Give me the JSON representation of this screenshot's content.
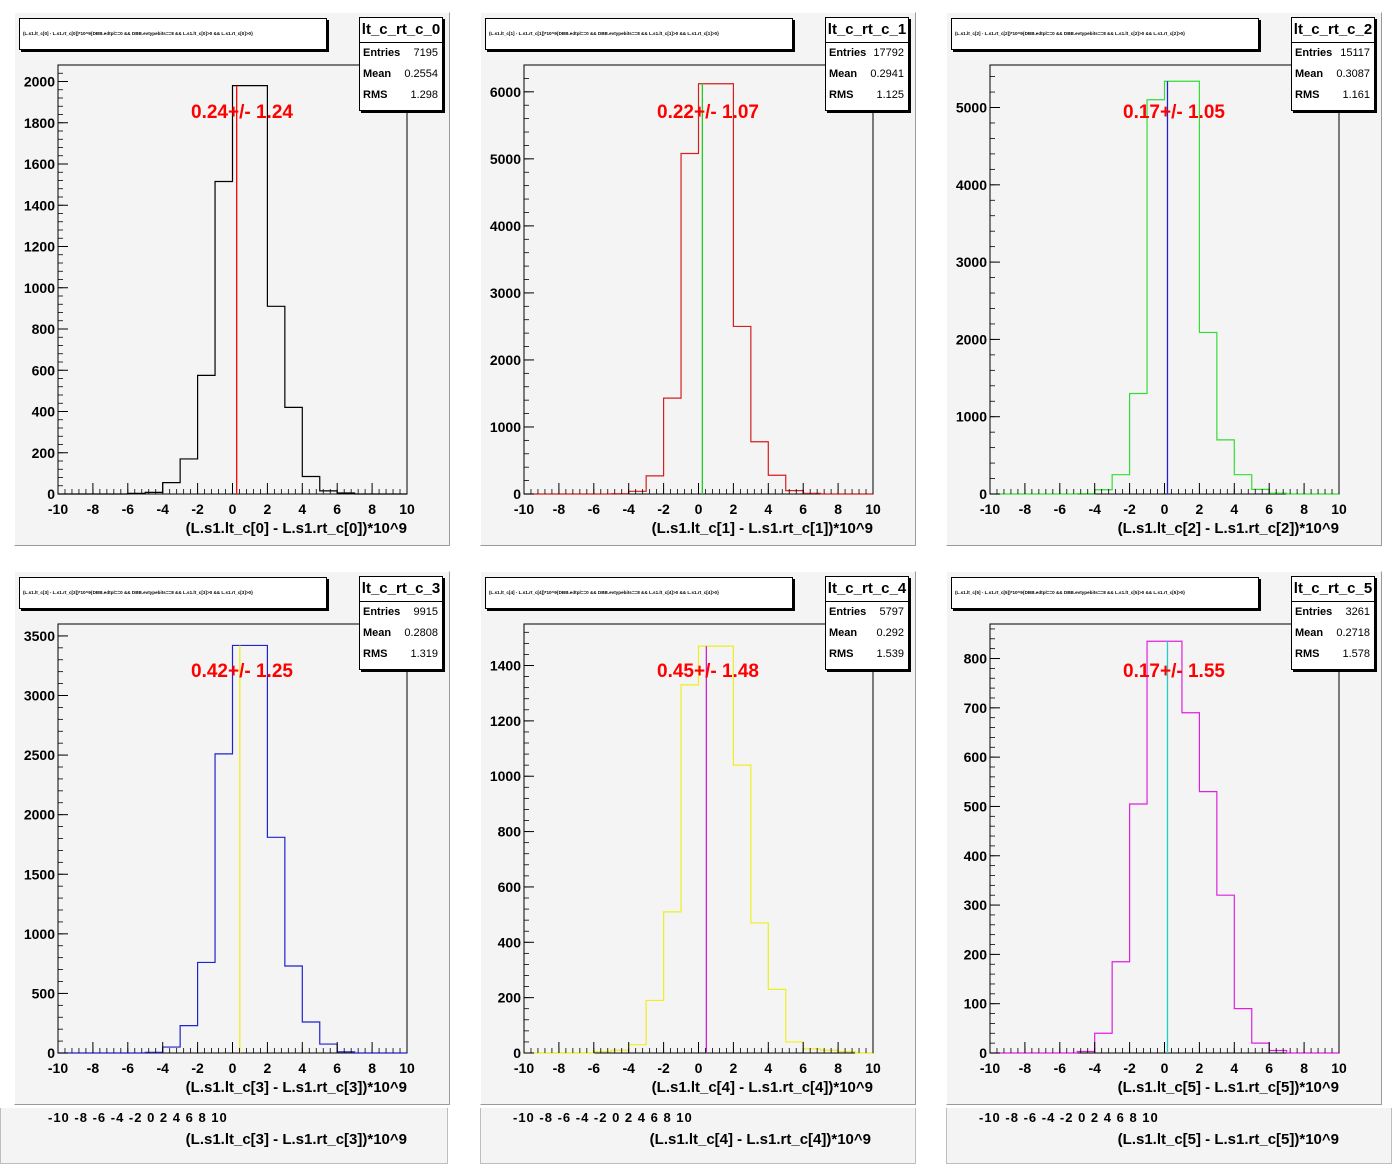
{
  "pads": [
    {
      "title": "(L.s1.lt_c[0] - L.s1.rt_c[0])*10^9{DBB.edtpl==0 && DBB.evtypebits==8 && L.s1.lt_c[0]>0 && L.s1.rt_c[0]>0}",
      "stats": {
        "name": "lt_c_rt_c_0",
        "entries": "7195",
        "mean": "0.2554",
        "rms": "1.298"
      },
      "annotation": "0.24+/- 1.24",
      "colors": {
        "hist": "#000000",
        "mean_line": "#ff0000"
      },
      "chart_data": {
        "type": "bar",
        "xlabel": "(L.s1.lt_c[0] - L.s1.rt_c[0])*10^9",
        "xlim": [
          -10,
          10
        ],
        "ylim": [
          0,
          2080
        ],
        "xticks": [
          -10,
          -8,
          -6,
          -4,
          -2,
          0,
          2,
          4,
          6,
          8,
          10
        ],
        "yticks": [
          0,
          200,
          400,
          600,
          800,
          1000,
          1200,
          1400,
          1600,
          1800,
          2000
        ],
        "bin_edges": [
          -10,
          -9,
          -8,
          -7,
          -6,
          -5,
          -4,
          -3,
          -2,
          -1,
          0,
          1,
          2,
          3,
          4,
          5,
          6,
          7,
          8,
          9,
          10
        ],
        "values": [
          0,
          0,
          0,
          0,
          3,
          8,
          55,
          170,
          575,
          1515,
          1980,
          1980,
          910,
          420,
          85,
          15,
          5,
          0,
          0,
          0
        ],
        "mean_line_x": 0.24
      }
    },
    {
      "title": "(L.s1.lt_c[1] - L.s1.rt_c[1])*10^9{DBB.edtpl==0 && DBB.evtypebits==8 && L.s1.lt_c[1]>0 && L.s1.rt_c[1]>0}",
      "stats": {
        "name": "lt_c_rt_c_1",
        "entries": "17792",
        "mean": "0.2941",
        "rms": "1.125"
      },
      "annotation": "0.22+/- 1.07",
      "colors": {
        "hist": "#d42020",
        "mean_line": "#22cc22"
      },
      "chart_data": {
        "type": "bar",
        "xlabel": "(L.s1.lt_c[1] - L.s1.rt_c[1])*10^9",
        "xlim": [
          -10,
          10
        ],
        "ylim": [
          0,
          6400
        ],
        "xticks": [
          -10,
          -8,
          -6,
          -4,
          -2,
          0,
          2,
          4,
          6,
          8,
          10
        ],
        "yticks": [
          0,
          1000,
          2000,
          3000,
          4000,
          5000,
          6000
        ],
        "bin_edges": [
          -10,
          -9,
          -8,
          -7,
          -6,
          -5,
          -4,
          -3,
          -2,
          -1,
          0,
          1,
          2,
          3,
          4,
          5,
          6,
          7,
          8,
          9,
          10
        ],
        "values": [
          0,
          0,
          0,
          0,
          0,
          5,
          40,
          270,
          1430,
          5080,
          6120,
          6120,
          2500,
          780,
          280,
          50,
          10,
          0,
          0,
          0
        ],
        "mean_line_x": 0.22
      }
    },
    {
      "title": "(L.s1.lt_c[2] - L.s1.rt_c[2])*10^9{DBB.edtpl==0 && DBB.evtypebits==8 && L.s1.lt_c[2]>0 && L.s1.rt_c[2]>0}",
      "stats": {
        "name": "lt_c_rt_c_2",
        "entries": "15117",
        "mean": "0.3087",
        "rms": "1.161"
      },
      "annotation": "0.17+/- 1.05",
      "colors": {
        "hist": "#33dd33",
        "mean_line": "#2222cc"
      },
      "chart_data": {
        "type": "bar",
        "xlabel": "(L.s1.lt_c[2] - L.s1.rt_c[2])*10^9",
        "xlim": [
          -10,
          10
        ],
        "ylim": [
          0,
          5550
        ],
        "xticks": [
          -10,
          -8,
          -6,
          -4,
          -2,
          0,
          2,
          4,
          6,
          8,
          10
        ],
        "yticks": [
          0,
          1000,
          2000,
          3000,
          4000,
          5000
        ],
        "bin_edges": [
          -10,
          -9,
          -8,
          -7,
          -6,
          -5,
          -4,
          -3,
          -2,
          -1,
          0,
          1,
          2,
          3,
          4,
          5,
          6,
          7,
          8,
          9,
          10
        ],
        "values": [
          0,
          0,
          0,
          0,
          0,
          5,
          55,
          250,
          1300,
          5100,
          5340,
          5340,
          2090,
          700,
          250,
          60,
          10,
          0,
          0,
          0
        ],
        "mean_line_x": 0.17
      }
    },
    {
      "title": "(L.s1.lt_c[3] - L.s1.rt_c[3])*10^9{DBB.edtpl==0 && DBB.evtypebits==8 && L.s1.lt_c[3]>0 && L.s1.rt_c[3]>0}",
      "stats": {
        "name": "lt_c_rt_c_3",
        "entries": "9915",
        "mean": "0.2808",
        "rms": "1.319"
      },
      "annotation": "0.42+/- 1.25",
      "colors": {
        "hist": "#2222cc",
        "mean_line": "#eeee22"
      },
      "chart_data": {
        "type": "bar",
        "xlabel": "(L.s1.lt_c[3] - L.s1.rt_c[3])*10^9",
        "xlim": [
          -10,
          10
        ],
        "ylim": [
          0,
          3600
        ],
        "xticks": [
          -10,
          -8,
          -6,
          -4,
          -2,
          0,
          2,
          4,
          6,
          8,
          10
        ],
        "yticks": [
          0,
          500,
          1000,
          1500,
          2000,
          2500,
          3000,
          3500
        ],
        "bin_edges": [
          -10,
          -9,
          -8,
          -7,
          -6,
          -5,
          -4,
          -3,
          -2,
          -1,
          0,
          1,
          2,
          3,
          4,
          5,
          6,
          7,
          8,
          9,
          10
        ],
        "values": [
          0,
          0,
          0,
          0,
          0,
          5,
          50,
          230,
          760,
          2510,
          3420,
          3420,
          1810,
          730,
          260,
          75,
          10,
          0,
          0,
          0
        ],
        "mean_line_x": 0.42
      }
    },
    {
      "title": "(L.s1.lt_c[4] - L.s1.rt_c[4])*10^9{DBB.edtpl==0 && DBB.evtypebits==8 && L.s1.lt_c[4]>0 && L.s1.rt_c[4]>0}",
      "stats": {
        "name": "lt_c_rt_c_4",
        "entries": "5797",
        "mean": "0.292",
        "rms": "1.539"
      },
      "annotation": "0.45+/- 1.48",
      "colors": {
        "hist": "#eeee22",
        "mean_line": "#cc22cc"
      },
      "chart_data": {
        "type": "bar",
        "xlabel": "(L.s1.lt_c[4] - L.s1.rt_c[4])*10^9",
        "xlim": [
          -10,
          10
        ],
        "ylim": [
          0,
          1550
        ],
        "xticks": [
          -10,
          -8,
          -6,
          -4,
          -2,
          0,
          2,
          4,
          6,
          8,
          10
        ],
        "yticks": [
          0,
          200,
          400,
          600,
          800,
          1000,
          1200,
          1400
        ],
        "bin_edges": [
          -10,
          -9,
          -8,
          -7,
          -6,
          -5,
          -4,
          -3,
          -2,
          -1,
          0,
          1,
          2,
          3,
          4,
          5,
          6,
          7,
          8,
          9,
          10
        ],
        "values": [
          0,
          0,
          0,
          0,
          5,
          10,
          30,
          190,
          510,
          1330,
          1470,
          1470,
          1040,
          470,
          230,
          40,
          15,
          10,
          5,
          0
        ],
        "mean_line_x": 0.45
      }
    },
    {
      "title": "(L.s1.lt_c[5] - L.s1.rt_c[5])*10^9{DBB.edtpl==0 && DBB.evtypebits==8 && L.s1.lt_c[5]>0 && L.s1.rt_c[5]>0}",
      "stats": {
        "name": "lt_c_rt_c_5",
        "entries": "3261",
        "mean": "0.2718",
        "rms": "1.578"
      },
      "annotation": "0.17+/- 1.55",
      "colors": {
        "hist": "#dd22dd",
        "mean_line": "#22cccc"
      },
      "chart_data": {
        "type": "bar",
        "xlabel": "(L.s1.lt_c[5] - L.s1.rt_c[5])*10^9",
        "xlim": [
          -10,
          10
        ],
        "ylim": [
          0,
          870
        ],
        "xticks": [
          -10,
          -8,
          -6,
          -4,
          -2,
          0,
          2,
          4,
          6,
          8,
          10
        ],
        "yticks": [
          0,
          100,
          200,
          300,
          400,
          500,
          600,
          700,
          800
        ],
        "bin_edges": [
          -10,
          -9,
          -8,
          -7,
          -6,
          -5,
          -4,
          -3,
          -2,
          -1,
          0,
          1,
          2,
          3,
          4,
          5,
          6,
          7,
          8,
          9,
          10
        ],
        "values": [
          0,
          0,
          0,
          0,
          0,
          3,
          40,
          185,
          505,
          835,
          835,
          690,
          530,
          320,
          90,
          20,
          5,
          0,
          0,
          0
        ],
        "mean_line_x": 0.17
      }
    }
  ],
  "ghost_row": [
    {
      "xlabel": "(L.s1.lt_c[3] - L.s1.rt_c[3])*10^9",
      "ticks": "-10  -8  -6  -4  -2  0  2  4  6  8  10"
    },
    {
      "xlabel": "(L.s1.lt_c[4] - L.s1.rt_c[4])*10^9",
      "ticks": "-10  -8  -6  -4  -2  0  2  4  6  8  10"
    },
    {
      "xlabel": "(L.s1.lt_c[5] - L.s1.rt_c[5])*10^9",
      "ticks": "-10  -8  -6  -4  -2  0  2  4  6  8  10"
    }
  ],
  "labels": {
    "entries": "Entries",
    "mean": "Mean",
    "rms": "RMS"
  }
}
